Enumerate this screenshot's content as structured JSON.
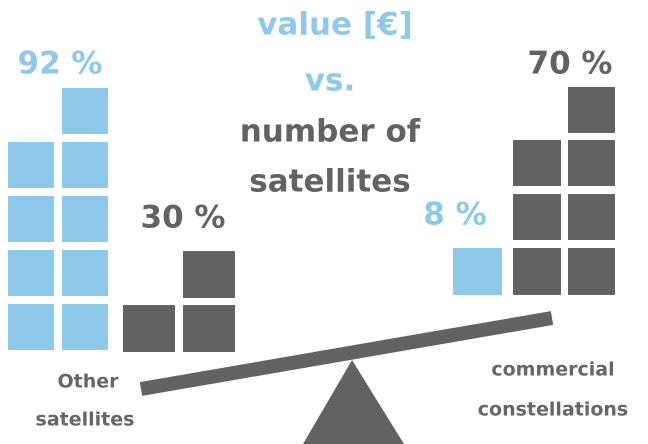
{
  "title": {
    "line1": "value [€]",
    "line2": "vs.",
    "line3": "number of",
    "line4": "satellites"
  },
  "left": {
    "value_share": "92 %",
    "count_share": "30 %",
    "label_line1": "Other",
    "label_line2": "satellites"
  },
  "right": {
    "value_share": "8 %",
    "count_share": "70 %",
    "label_line1": "commercial",
    "label_line2": "constellations"
  }
}
